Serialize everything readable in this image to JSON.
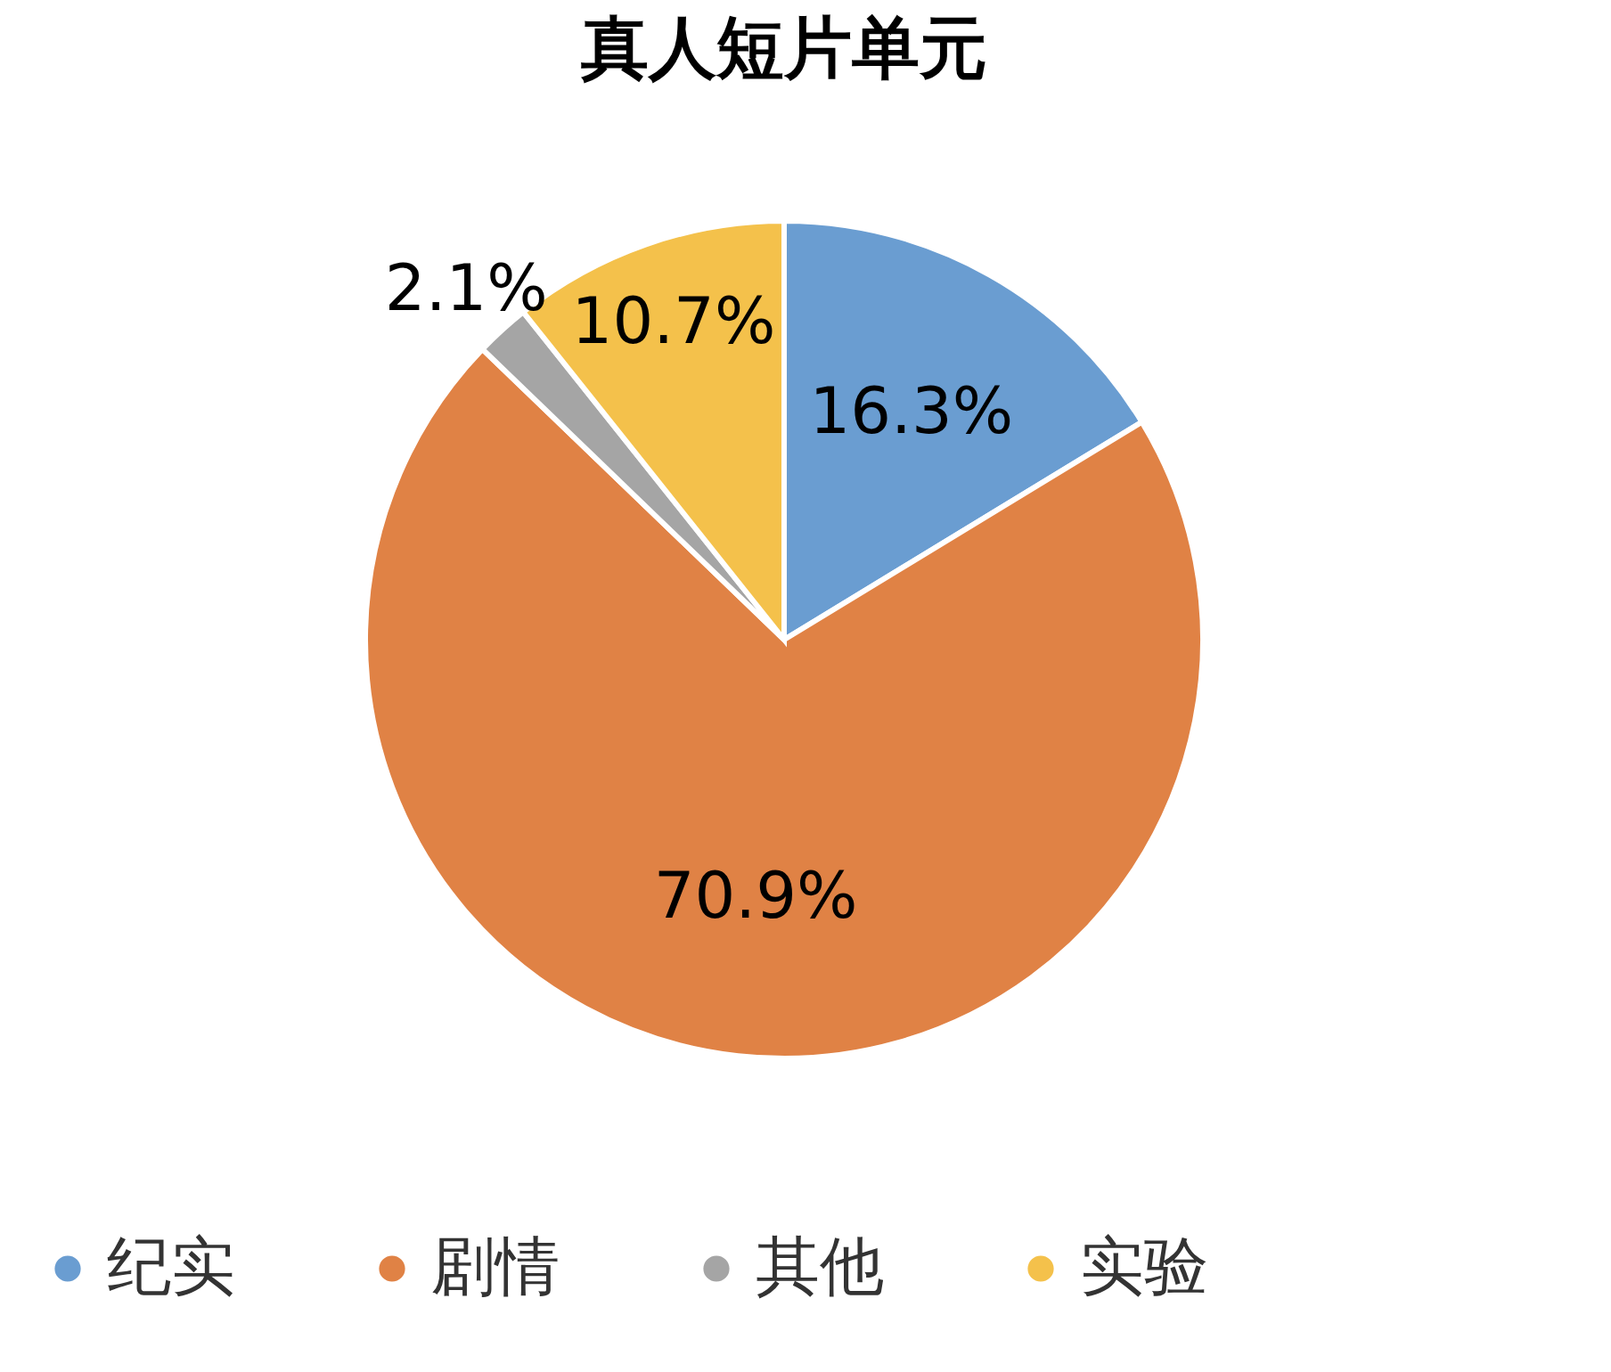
{
  "chart_data": {
    "type": "pie",
    "title": "真人短片单元",
    "categories": [
      "纪实",
      "剧情",
      "其他",
      "实验"
    ],
    "values": [
      16.3,
      70.9,
      2.1,
      10.7
    ],
    "colors": [
      "#6a9dd1",
      "#e08245",
      "#a5a5a5",
      "#f4c14b"
    ],
    "value_labels": [
      "16.3%",
      "70.9%",
      "2.1%",
      "10.7%"
    ],
    "legend": "bottom"
  }
}
